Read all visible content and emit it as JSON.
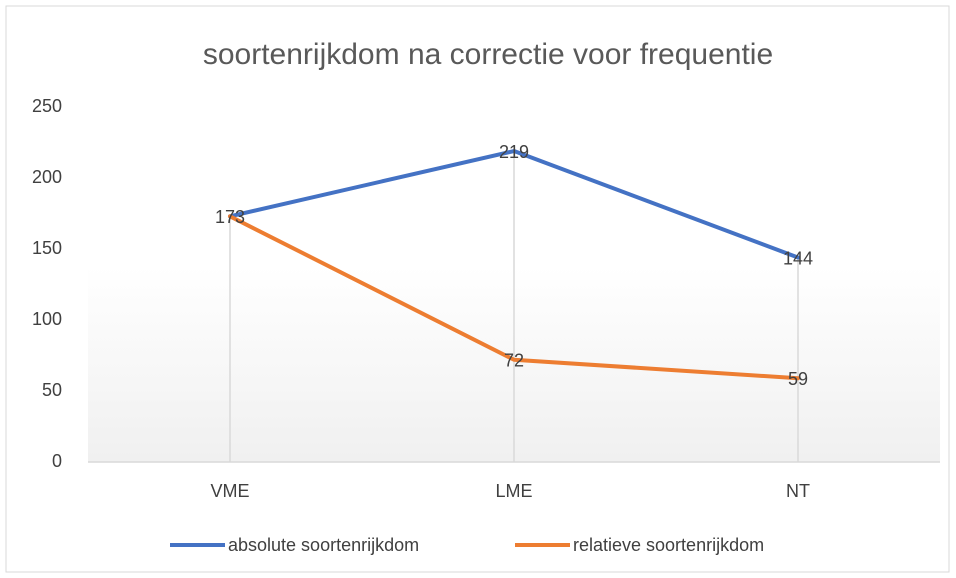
{
  "chart_data": {
    "type": "line",
    "title": "soortenrijkdom na correctie voor frequentie",
    "categories": [
      "VME",
      "LME",
      "NT"
    ],
    "series": [
      {
        "name": "absolute soortenrijkdom",
        "color": "#4472c4",
        "values": [
          173,
          219,
          144
        ]
      },
      {
        "name": "relatieve soortenrijkdom",
        "color": "#ed7d31",
        "values": [
          173,
          72,
          59
        ]
      }
    ],
    "ylim": [
      0,
      250
    ],
    "yticks": [
      0,
      50,
      100,
      150,
      200,
      250
    ],
    "grid": false,
    "drop_lines": true,
    "data_labels": true,
    "legend": "bottom"
  }
}
